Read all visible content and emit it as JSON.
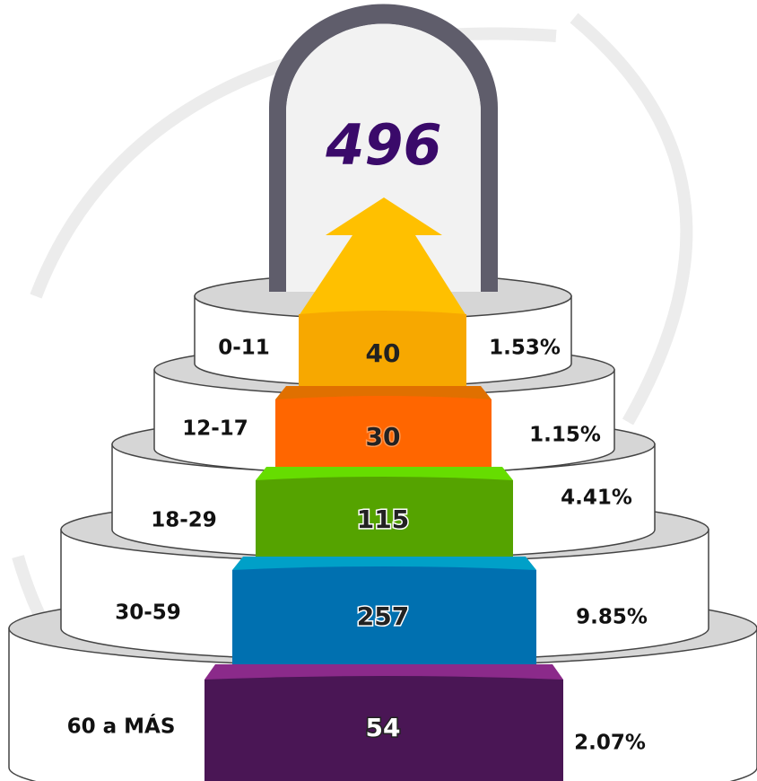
{
  "total": "496",
  "tiers": [
    {
      "label": "0-11",
      "value": "40",
      "percent": "1.53%"
    },
    {
      "label": "12-17",
      "value": "30",
      "percent": "1.15%"
    },
    {
      "label": "18-29",
      "value": "115",
      "percent": "4.41%"
    },
    {
      "label": "30-59",
      "value": "257",
      "percent": "9.85%"
    },
    {
      "label": "60 a MÁS",
      "value": "54",
      "percent": "2.07%"
    }
  ]
}
